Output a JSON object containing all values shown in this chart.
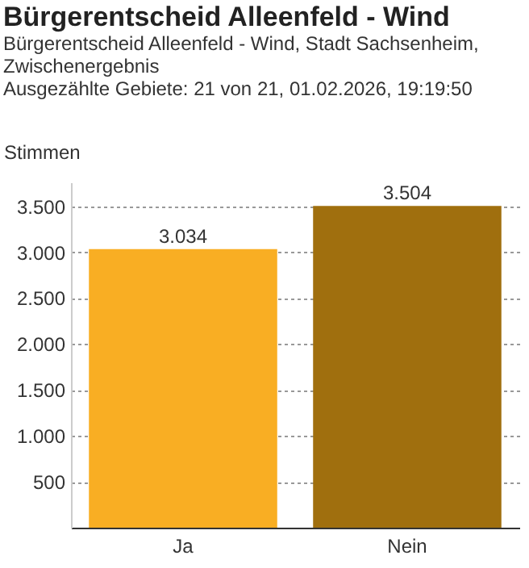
{
  "chart_data": {
    "type": "bar",
    "title": "Bürgerentscheid Alleenfeld - Wind",
    "subtitle": "Bürgerentscheid Alleenfeld - Wind, Stadt Sachsenheim,\nZwischenergebnis\nAusgezählte Gebiete: 21 von 21, 01.02.2026, 19:19:50",
    "ylabel": "Stimmen",
    "categories": [
      "Ja",
      "Nein"
    ],
    "values": [
      3034,
      3504
    ],
    "colors": [
      "#f9ae23",
      "#a06f0e"
    ],
    "value_labels": [
      "3.034",
      "3.504"
    ],
    "ylim": [
      0,
      3760
    ],
    "yticks": [
      {
        "value": 500,
        "label": "500"
      },
      {
        "value": 1000,
        "label": "1.000"
      },
      {
        "value": 1500,
        "label": "1.500"
      },
      {
        "value": 2000,
        "label": "2.000"
      },
      {
        "value": 2500,
        "label": "2.500"
      },
      {
        "value": 3000,
        "label": "3.000"
      },
      {
        "value": 3500,
        "label": "3.500"
      }
    ],
    "grid": "y"
  }
}
